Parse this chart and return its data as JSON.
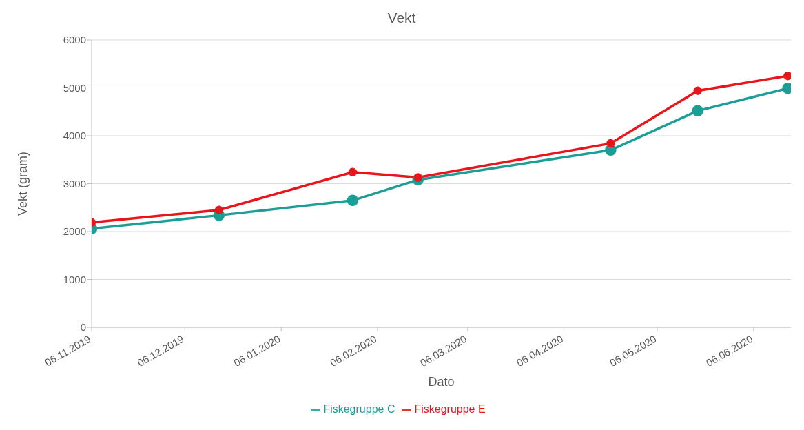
{
  "chart_data": {
    "type": "line",
    "title": "Vekt",
    "xlabel": "Dato",
    "ylabel": "Vekt (gram)",
    "x": [
      "2019-11-06",
      "2019-12-17",
      "2020-01-29",
      "2020-02-19",
      "2020-04-21",
      "2020-05-19",
      "2020-06-17"
    ],
    "series": [
      {
        "name": "Fiskegruppe C",
        "color": "#1b9e96",
        "values": [
          2060,
          2340,
          2650,
          3080,
          3700,
          4520,
          4990
        ]
      },
      {
        "name": "Fiskegruppe E",
        "color": "#e8151b",
        "values": [
          2190,
          2450,
          3240,
          3130,
          3840,
          4940,
          5250
        ]
      }
    ],
    "xlim": [
      "2019-11-06",
      "2020-06-18"
    ],
    "xticks": [
      {
        "value": "2019-11-06",
        "label": "06.11.2019"
      },
      {
        "value": "2019-12-06",
        "label": "06.12.2019"
      },
      {
        "value": "2020-01-06",
        "label": "06.01.2020"
      },
      {
        "value": "2020-02-06",
        "label": "06.02.2020"
      },
      {
        "value": "2020-03-06",
        "label": "06.03.2020"
      },
      {
        "value": "2020-04-06",
        "label": "06.04.2020"
      },
      {
        "value": "2020-05-06",
        "label": "06.05.2020"
      },
      {
        "value": "2020-06-06",
        "label": "06.06.2020"
      }
    ],
    "ylim": [
      0,
      6000
    ],
    "yticks": [
      0,
      1000,
      2000,
      3000,
      4000,
      5000,
      6000
    ],
    "grid": "y",
    "legend": "bottom",
    "marker": "circle",
    "line_style": "solid"
  }
}
